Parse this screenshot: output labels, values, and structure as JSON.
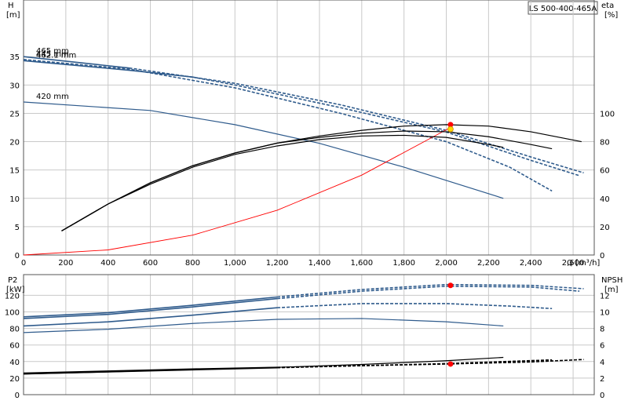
{
  "model_label": "LS 500-400-465A",
  "chart_data": [
    {
      "type": "line",
      "id": "head_efficiency",
      "x_label": "Q [m³/h]",
      "x_ticks": [
        0,
        200,
        400,
        600,
        800,
        1000,
        1200,
        1400,
        1600,
        1800,
        2000,
        2200,
        2400,
        2600
      ],
      "x_tick_labels": [
        "0",
        "200",
        "400",
        "600",
        "800",
        "1,000",
        "1,200",
        "1,400",
        "1,600",
        "1,800",
        "2,000",
        "2,200",
        "2,400",
        "2,600"
      ],
      "xlim": [
        0,
        2700
      ],
      "y_left": {
        "label_line1": "H",
        "label_line2": "[m]",
        "ticks": [
          0,
          5,
          10,
          15,
          20,
          25,
          30,
          35
        ],
        "lim": [
          0,
          45
        ]
      },
      "y_right": {
        "label_line1": "eta",
        "label_line2": "[%]",
        "ticks": [
          0,
          20,
          40,
          60,
          80,
          100
        ],
        "lim": [
          0,
          180
        ]
      },
      "grid": true,
      "series": [
        {
          "name": "465 mm",
          "axis": "left",
          "color": "#2f5b8c",
          "style": "solid-dashed",
          "break_x": 500,
          "x": [
            0,
            500,
            1000,
            1500,
            2000,
            2400,
            2650
          ],
          "y": [
            35.0,
            33.0,
            30.3,
            26.5,
            22.0,
            17.3,
            14.5
          ]
        },
        {
          "name": "462.1 mm",
          "axis": "left",
          "color": "#2f5b8c",
          "style": "solid-dashed",
          "break_x": 800,
          "x": [
            0,
            500,
            800,
            1000,
            1500,
            2000,
            2400,
            2630
          ],
          "y": [
            34.3,
            32.6,
            31.4,
            30.0,
            26.0,
            21.7,
            16.7,
            14.0
          ]
        },
        {
          "name": "445 mm",
          "axis": "left",
          "color": "#2f5b8c",
          "style": "solid-dashed",
          "break_x": 0,
          "x": [
            0,
            500,
            1000,
            1500,
            2000,
            2300,
            2500
          ],
          "y": [
            34.5,
            32.8,
            29.5,
            25.0,
            20.0,
            15.5,
            11.3
          ]
        },
        {
          "name": "420 mm",
          "axis": "left",
          "color": "#2f5b8c",
          "style": "solid",
          "break_x": 0,
          "x": [
            0,
            600,
            1000,
            1400,
            1800,
            2270
          ],
          "y": [
            27.0,
            25.5,
            23.0,
            19.7,
            15.5,
            10.0
          ]
        },
        {
          "name": "",
          "axis": "left",
          "color": "#ff0000",
          "style": "solid",
          "break_x": 0,
          "x": [
            0,
            400,
            800,
            1200,
            1600,
            2020
          ],
          "y": [
            0,
            0.9,
            3.5,
            7.9,
            14.1,
            22.5
          ]
        },
        {
          "name": "",
          "axis": "right",
          "color": "#000000",
          "style": "solid",
          "break_x": 0,
          "x": [
            180,
            400,
            600,
            800,
            1000,
            1200,
            1400,
            1600,
            1800,
            2000,
            2200,
            2400,
            2640
          ],
          "y": [
            17,
            36,
            51,
            63,
            72,
            79,
            84,
            88,
            91,
            92,
            91,
            87,
            80
          ]
        },
        {
          "name": "",
          "axis": "right",
          "color": "#000000",
          "style": "solid",
          "break_x": 0,
          "x": [
            180,
            400,
            600,
            800,
            1000,
            1200,
            1400,
            1600,
            1800,
            2000,
            2200,
            2400,
            2500
          ],
          "y": [
            17,
            36,
            51,
            63,
            72,
            79,
            83,
            86,
            87.5,
            87,
            83.5,
            78,
            75
          ]
        },
        {
          "name": "",
          "axis": "right",
          "color": "#000000",
          "style": "solid",
          "break_x": 0,
          "x": [
            180,
            400,
            600,
            800,
            1000,
            1200,
            1400,
            1600,
            1800,
            2000,
            2200,
            2270
          ],
          "y": [
            17,
            36,
            50,
            62,
            71,
            77,
            81.5,
            84,
            84.5,
            83,
            78,
            76
          ]
        }
      ],
      "operating_points": [
        {
          "x": 2020,
          "y": 23.0,
          "axis": "left",
          "color": "#ff0000"
        },
        {
          "x": 2020,
          "y": 22.2,
          "axis": "left",
          "color": "#ffd700"
        }
      ]
    },
    {
      "type": "line",
      "id": "power_npsh",
      "y_left": {
        "label_line1": "P2",
        "label_line2": "[kW]",
        "ticks": [
          0,
          20,
          40,
          60,
          80,
          100,
          120
        ],
        "lim": [
          0,
          145
        ]
      },
      "y_right": {
        "label_line1": "NPSH",
        "label_line2": "[m]",
        "ticks": [
          0,
          2,
          4,
          6,
          8,
          10,
          12
        ],
        "lim": [
          0,
          14.5
        ]
      },
      "grid": true,
      "series": [
        {
          "name": "",
          "axis": "left",
          "color": "#2f5b8c",
          "style": "solid-dashed",
          "break_x": 1200,
          "x": [
            0,
            400,
            800,
            1200,
            1600,
            2000,
            2400,
            2650
          ],
          "y": [
            94,
            99,
            108,
            118,
            127,
            133,
            132,
            128
          ]
        },
        {
          "name": "",
          "axis": "left",
          "color": "#2f5b8c",
          "style": "solid-dashed",
          "break_x": 1200,
          "x": [
            0,
            400,
            800,
            1200,
            1600,
            2000,
            2400,
            2630
          ],
          "y": [
            92,
            97,
            106,
            116,
            125,
            131,
            130,
            125
          ]
        },
        {
          "name": "",
          "axis": "left",
          "color": "#2f5b8c",
          "style": "solid-dashed",
          "break_x": 1200,
          "x": [
            0,
            400,
            800,
            1200,
            1600,
            2000,
            2300,
            2500
          ],
          "y": [
            83,
            88,
            96,
            105,
            110,
            110,
            107,
            104
          ]
        },
        {
          "name": "",
          "axis": "left",
          "color": "#2f5b8c",
          "style": "solid",
          "break_x": 0,
          "x": [
            0,
            400,
            800,
            1200,
            1600,
            2000,
            2270
          ],
          "y": [
            75,
            79,
            86,
            91,
            92,
            88,
            83
          ]
        },
        {
          "name": "",
          "axis": "right",
          "color": "#000000",
          "style": "solid",
          "break_x": 0,
          "x": [
            0,
            400,
            800,
            1200,
            1600,
            2000,
            2270
          ],
          "y": [
            2.5,
            2.75,
            3.05,
            3.3,
            3.65,
            4.1,
            4.5
          ]
        },
        {
          "name": "",
          "axis": "right",
          "color": "#000000",
          "style": "solid-dashed",
          "break_x": 1200,
          "x": [
            0,
            400,
            800,
            1200,
            1600,
            2000,
            2500
          ],
          "y": [
            2.5,
            2.75,
            3.0,
            3.25,
            3.5,
            3.75,
            4.2
          ]
        },
        {
          "name": "",
          "axis": "right",
          "color": "#000000",
          "style": "solid-dashed",
          "break_x": 1200,
          "x": [
            0,
            400,
            800,
            1200,
            1600,
            2000,
            2400,
            2650
          ],
          "y": [
            2.6,
            2.85,
            3.1,
            3.3,
            3.5,
            3.7,
            3.95,
            4.25
          ]
        }
      ],
      "operating_points": [
        {
          "x": 2020,
          "y": 132,
          "axis": "left",
          "color": "#ff0000"
        },
        {
          "x": 2020,
          "y": 3.7,
          "axis": "right",
          "color": "#ff0000"
        }
      ]
    }
  ]
}
